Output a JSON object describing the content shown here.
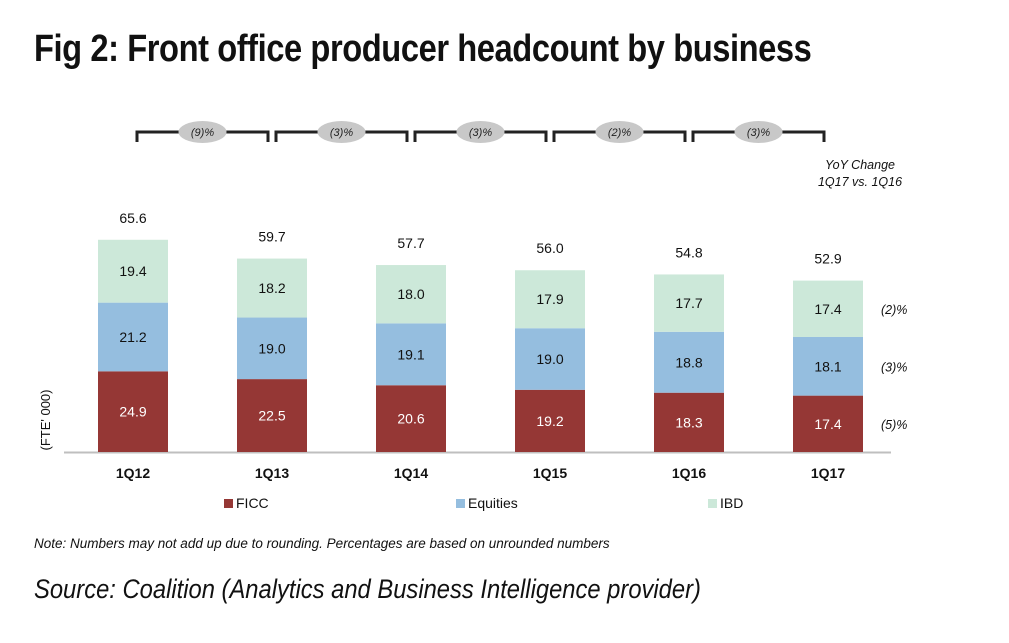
{
  "title": "Fig 2: Front office producer headcount by business",
  "note": "Note: Numbers may not add up due to rounding. Percentages are based on unrounded numbers",
  "source": "Source: Coalition (Analytics and Business Intelligence provider)",
  "chart_data": {
    "type": "bar",
    "stacked": true,
    "categories": [
      "1Q12",
      "1Q13",
      "1Q14",
      "1Q15",
      "1Q16",
      "1Q17"
    ],
    "series": [
      {
        "name": "FICC",
        "color": "#953735",
        "values": [
          24.9,
          22.5,
          20.6,
          19.2,
          18.3,
          17.4
        ]
      },
      {
        "name": "Equities",
        "color": "#95bedf",
        "values": [
          21.2,
          19.0,
          19.1,
          19.0,
          18.8,
          18.1
        ]
      },
      {
        "name": "IBD",
        "color": "#cce8d9",
        "values": [
          19.4,
          18.2,
          18.0,
          17.9,
          17.7,
          17.4
        ]
      }
    ],
    "totals": [
      "65.6",
      "59.7",
      "57.7",
      "56.0",
      "54.8",
      "52.9"
    ],
    "ylabel": "(FTE' 000)",
    "ylim": [
      0,
      70
    ],
    "grid": false,
    "legend_position": "bottom",
    "yoy_changes": [
      "(9)%",
      "(3)%",
      "(3)%",
      "(2)%",
      "(3)%"
    ],
    "yoy_header": [
      "YoY Change",
      "1Q17 vs. 1Q16"
    ],
    "series_yoy": [
      "(5)%",
      "(3)%",
      "(2)%"
    ]
  }
}
